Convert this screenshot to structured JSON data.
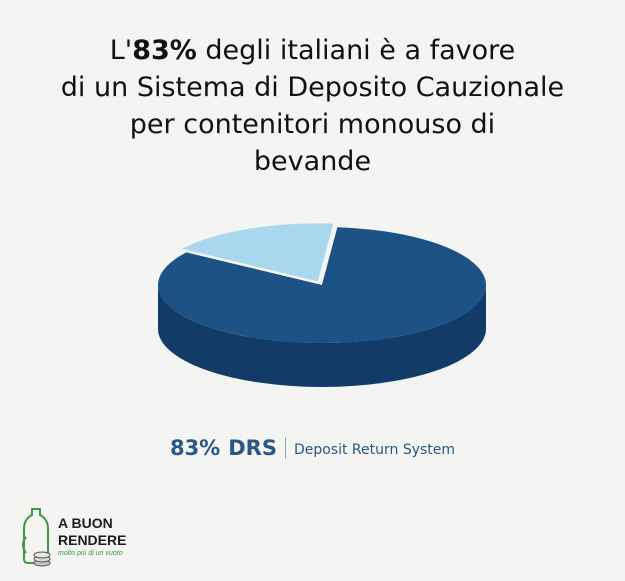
{
  "title": {
    "line1_pre": "L'",
    "line1_bold": "83%",
    "line1_post": " degli italiani è a favore",
    "line2": "di un Sistema di Deposito Cauzionale",
    "line3": "per contenitori monouso di",
    "line4": "bevande"
  },
  "chart_data": {
    "type": "pie",
    "title": "L'83% degli italiani è a favore di un Sistema di Deposito Cauzionale per contenitori monouso di bevande",
    "slices": [
      {
        "label": "DRS",
        "value": 83,
        "color": "#1d5287",
        "side_color": "#123b67"
      },
      {
        "label": "",
        "value": 17,
        "color": "#a9d8ee",
        "side_color": "#7fb6d2"
      }
    ]
  },
  "legend": {
    "percent": "83%",
    "abbr": "DRS",
    "description": "Deposit Return System"
  },
  "logo": {
    "line1": "A BUON",
    "line2": "RENDERE",
    "tagline": "molto più di un vuoto"
  }
}
